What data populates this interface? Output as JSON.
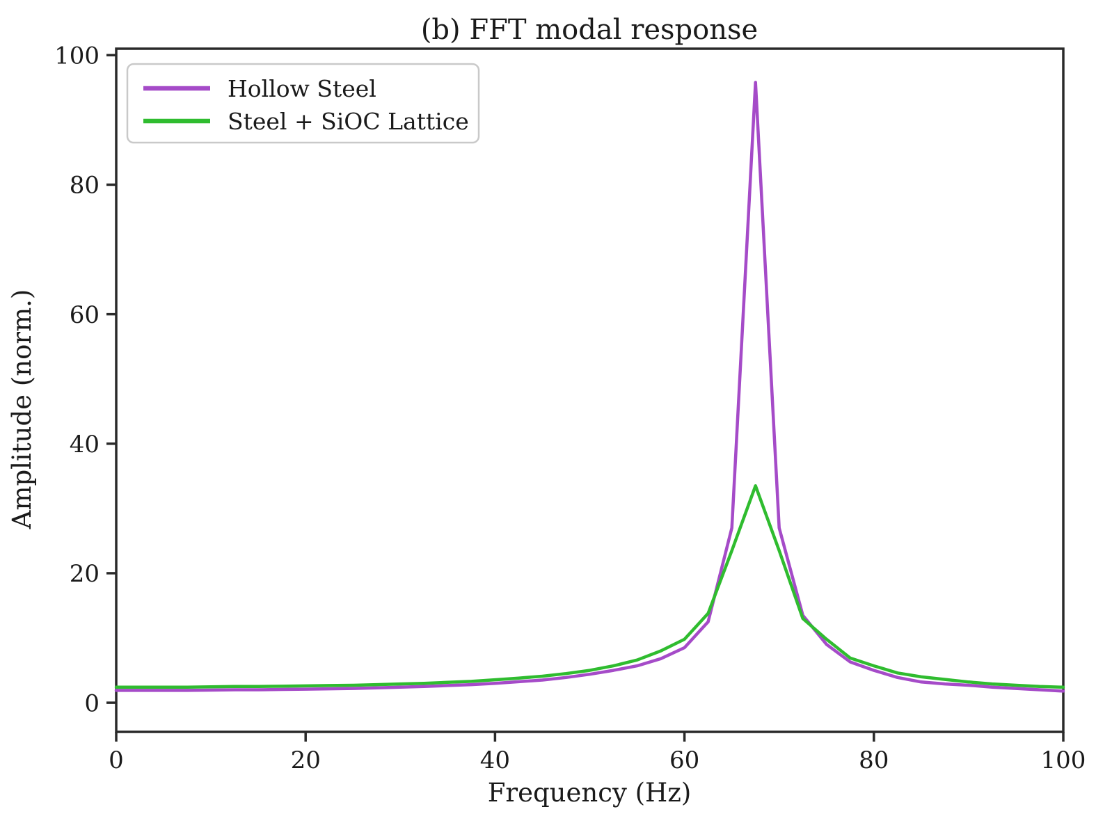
{
  "figure": {
    "background": "#ffffff",
    "text_color": "#1a1a1a",
    "spine_color": "#2a2a2a"
  },
  "chart_data": {
    "type": "line",
    "title": "(b) FFT modal response",
    "xlabel": "Frequency (Hz)",
    "ylabel": "Amplitude (norm.)",
    "xlim": [
      0,
      100
    ],
    "ylim": [
      -4.5,
      101
    ],
    "xticks": [
      0,
      20,
      40,
      60,
      80,
      100
    ],
    "yticks": [
      0,
      20,
      40,
      60,
      80,
      100
    ],
    "grid": false,
    "legend_position": "upper-left",
    "x": [
      0,
      2.5,
      5,
      7.5,
      10,
      12.5,
      15,
      17.5,
      20,
      22.5,
      25,
      27.5,
      30,
      32.5,
      35,
      37.5,
      40,
      42.5,
      45,
      47.5,
      50,
      52.5,
      55,
      57.5,
      60,
      62.5,
      65,
      67.5,
      70,
      72.5,
      75,
      77.5,
      80,
      82.5,
      85,
      87.5,
      90,
      92.5,
      95,
      97.5,
      100
    ],
    "series": [
      {
        "name": "Hollow Steel",
        "color": "#a54bc8",
        "values": [
          1.9,
          1.9,
          1.9,
          1.9,
          1.95,
          2.0,
          2.0,
          2.05,
          2.1,
          2.15,
          2.2,
          2.3,
          2.4,
          2.5,
          2.65,
          2.8,
          3.0,
          3.25,
          3.5,
          3.9,
          4.4,
          5.0,
          5.7,
          6.8,
          8.5,
          12.5,
          27.0,
          95.8,
          27.0,
          13.5,
          9.0,
          6.3,
          5.0,
          3.9,
          3.2,
          2.9,
          2.7,
          2.4,
          2.2,
          2.0,
          1.8
        ]
      },
      {
        "name": "Steel + SiOC Lattice",
        "color": "#2fbc2f",
        "values": [
          2.4,
          2.4,
          2.4,
          2.4,
          2.45,
          2.5,
          2.5,
          2.55,
          2.6,
          2.65,
          2.7,
          2.8,
          2.9,
          3.0,
          3.15,
          3.3,
          3.55,
          3.8,
          4.1,
          4.5,
          5.0,
          5.7,
          6.6,
          8.0,
          9.8,
          13.8,
          23.5,
          33.5,
          23.5,
          13.0,
          9.8,
          6.9,
          5.7,
          4.6,
          4.0,
          3.6,
          3.2,
          2.9,
          2.7,
          2.5,
          2.4
        ]
      }
    ]
  }
}
